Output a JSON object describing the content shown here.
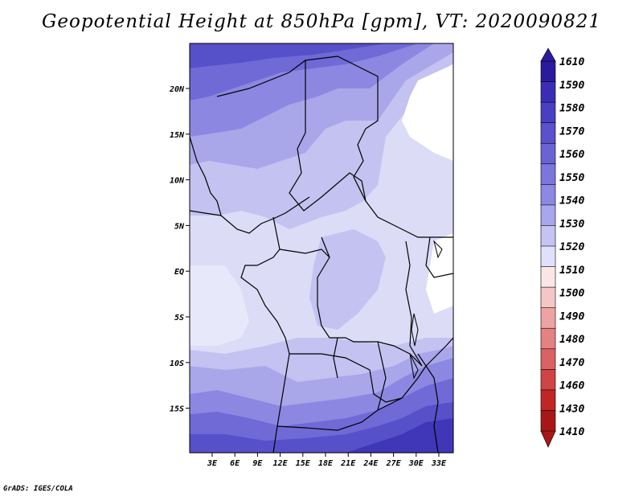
{
  "title": "Geopotential Height at 850hPa [gpm], VT: 2020090821",
  "credit": "GrADS: IGES/COLA",
  "map": {
    "lon_labels": [
      "3E",
      "6E",
      "9E",
      "12E",
      "15E",
      "18E",
      "21E",
      "24E",
      "27E",
      "30E",
      "33E"
    ],
    "lat_labels": [
      "20N",
      "15N",
      "10N",
      "5N",
      "EQ",
      "5S",
      "10S",
      "15S"
    ]
  },
  "colorbar": {
    "levels": [
      "1610",
      "1590",
      "1580",
      "1570",
      "1560",
      "1550",
      "1540",
      "1530",
      "1520",
      "1510",
      "1500",
      "1490",
      "1480",
      "1470",
      "1460",
      "1430",
      "1410"
    ],
    "colors": [
      "#2a1b9e",
      "#3a2db3",
      "#4a3fc1",
      "#5a51cb",
      "#6a63d4",
      "#7b75dc",
      "#8c88e4",
      "#a8a6ec",
      "#c4c3f3",
      "#e0e0fa",
      "#fbe6e6",
      "#f5c6c6",
      "#eda3a3",
      "#e48282",
      "#da6262",
      "#cf4444",
      "#c02626",
      "#a81717"
    ],
    "top_color": "#2a1b9e",
    "bottom_color": "#a81717"
  }
}
